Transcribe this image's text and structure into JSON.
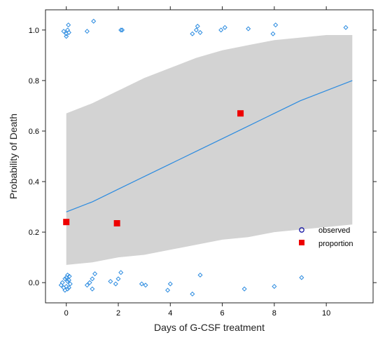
{
  "colors": {
    "band": "#d3d3d3",
    "line": "#2b8be0",
    "observed": "#2b8be0",
    "proportion": "#ee0000",
    "legend_observed": "#1a1aa6"
  },
  "chart_data": {
    "type": "scatter",
    "title": "",
    "xlabel": "Days of G-CSF treatment",
    "ylabel": "Probability of Death",
    "xlim": [
      -0.8,
      11.8
    ],
    "ylim": [
      -0.08,
      1.08
    ],
    "xticks": [
      0,
      2,
      4,
      6,
      8,
      10
    ],
    "yticks": [
      0.0,
      0.2,
      0.4,
      0.6,
      0.8,
      1.0
    ],
    "xtick_labels": [
      "0",
      "2",
      "4",
      "6",
      "8",
      "10"
    ],
    "ytick_labels": [
      "0.0",
      "0.2",
      "0.4",
      "0.6",
      "0.8",
      "1.0"
    ],
    "grid": false,
    "legend": {
      "position": "bottom-right",
      "entries": [
        {
          "label": "observed",
          "marker": "circle"
        },
        {
          "label": "proportion",
          "marker": "square"
        }
      ]
    },
    "fit_line": {
      "name": "fitted",
      "x": [
        0,
        1,
        2,
        3,
        4,
        5,
        6,
        7,
        8,
        9,
        10,
        11
      ],
      "y": [
        0.28,
        0.32,
        0.37,
        0.42,
        0.47,
        0.52,
        0.57,
        0.62,
        0.67,
        0.72,
        0.76,
        0.8
      ]
    },
    "confidence_band": {
      "x": [
        0,
        1,
        2,
        3,
        4,
        5,
        6,
        7,
        8,
        9,
        10,
        11
      ],
      "lower": [
        0.07,
        0.08,
        0.1,
        0.11,
        0.13,
        0.15,
        0.17,
        0.18,
        0.2,
        0.21,
        0.22,
        0.23
      ],
      "upper": [
        0.67,
        0.71,
        0.76,
        0.81,
        0.85,
        0.89,
        0.92,
        0.94,
        0.96,
        0.97,
        0.98,
        0.98
      ]
    },
    "observed": {
      "name": "observed",
      "points": [
        [
          -0.1,
          0.995
        ],
        [
          0.0,
          0.985
        ],
        [
          0.05,
          1.0
        ],
        [
          0.1,
          0.99
        ],
        [
          0.0,
          0.975
        ],
        [
          0.08,
          1.02
        ],
        [
          0.8,
          0.995
        ],
        [
          1.05,
          1.035
        ],
        [
          2.1,
          1.0
        ],
        [
          2.15,
          1.0
        ],
        [
          4.85,
          0.985
        ],
        [
          5.0,
          1.0
        ],
        [
          5.05,
          1.015
        ],
        [
          5.15,
          0.99
        ],
        [
          5.95,
          1.0
        ],
        [
          6.1,
          1.01
        ],
        [
          7.0,
          1.005
        ],
        [
          7.95,
          0.985
        ],
        [
          8.05,
          1.02
        ],
        [
          10.75,
          1.01
        ],
        [
          -0.2,
          -0.01
        ],
        [
          -0.15,
          0.0
        ],
        [
          -0.1,
          -0.02
        ],
        [
          -0.05,
          0.015
        ],
        [
          -0.05,
          -0.03
        ],
        [
          0.0,
          0.02
        ],
        [
          0.0,
          -0.015
        ],
        [
          0.05,
          0.005
        ],
        [
          0.05,
          0.03
        ],
        [
          0.05,
          -0.025
        ],
        [
          0.1,
          0.01
        ],
        [
          0.1,
          -0.02
        ],
        [
          0.12,
          0.025
        ],
        [
          0.15,
          -0.005
        ],
        [
          0.8,
          -0.01
        ],
        [
          0.9,
          0.0
        ],
        [
          1.0,
          0.015
        ],
        [
          1.0,
          -0.025
        ],
        [
          1.1,
          0.035
        ],
        [
          1.7,
          0.005
        ],
        [
          1.9,
          -0.005
        ],
        [
          2.0,
          0.015
        ],
        [
          2.1,
          0.04
        ],
        [
          2.9,
          -0.005
        ],
        [
          3.05,
          -0.01
        ],
        [
          3.9,
          -0.03
        ],
        [
          4.0,
          -0.005
        ],
        [
          4.85,
          -0.045
        ],
        [
          5.15,
          0.03
        ],
        [
          6.85,
          -0.025
        ],
        [
          8.0,
          -0.015
        ],
        [
          9.05,
          0.02
        ]
      ]
    },
    "proportion": {
      "name": "proportion",
      "points": [
        [
          0.0,
          0.24
        ],
        [
          1.95,
          0.235
        ],
        [
          6.7,
          0.67
        ]
      ]
    }
  }
}
